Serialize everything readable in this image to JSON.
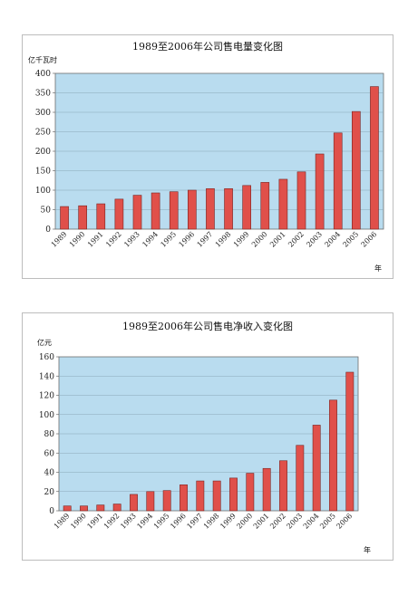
{
  "chart_data": [
    {
      "type": "bar",
      "title": "1989至2006年公司售电量变化图",
      "ylabel": "亿千瓦时",
      "xlabel": "年",
      "ylim": [
        0,
        400
      ],
      "yticks": [
        0,
        50,
        100,
        150,
        200,
        250,
        300,
        350,
        400
      ],
      "categories": [
        "1989",
        "1990",
        "1991",
        "1992",
        "1993",
        "1994",
        "1995",
        "1996",
        "1997",
        "1998",
        "1999",
        "2000",
        "2001",
        "2002",
        "2003",
        "2004",
        "2005",
        "2006"
      ],
      "values": [
        58,
        60,
        65,
        77,
        87,
        93,
        96,
        100,
        104,
        104,
        112,
        120,
        128,
        147,
        193,
        247,
        302,
        366
      ],
      "grid": true,
      "bar_color": "#e0504a",
      "plot_bg": "#b9dcef"
    },
    {
      "type": "bar",
      "title": "1989至2006年公司售电净收入变化图",
      "ylabel": "亿元",
      "xlabel": "年",
      "ylim": [
        0,
        160
      ],
      "yticks": [
        0,
        20,
        40,
        60,
        80,
        100,
        120,
        140,
        160
      ],
      "categories": [
        "1989",
        "1990",
        "1991",
        "1992",
        "1993",
        "1994",
        "1995",
        "1996",
        "1997",
        "1998",
        "1999",
        "2000",
        "2001",
        "2002",
        "2003",
        "2004",
        "2005",
        "2006"
      ],
      "values": [
        5,
        5,
        6,
        7,
        17,
        20,
        21,
        27,
        31,
        31,
        34,
        39,
        44,
        52,
        68,
        89,
        115,
        144
      ],
      "grid": true,
      "bar_color": "#e0504a",
      "plot_bg": "#b9dcef"
    }
  ]
}
